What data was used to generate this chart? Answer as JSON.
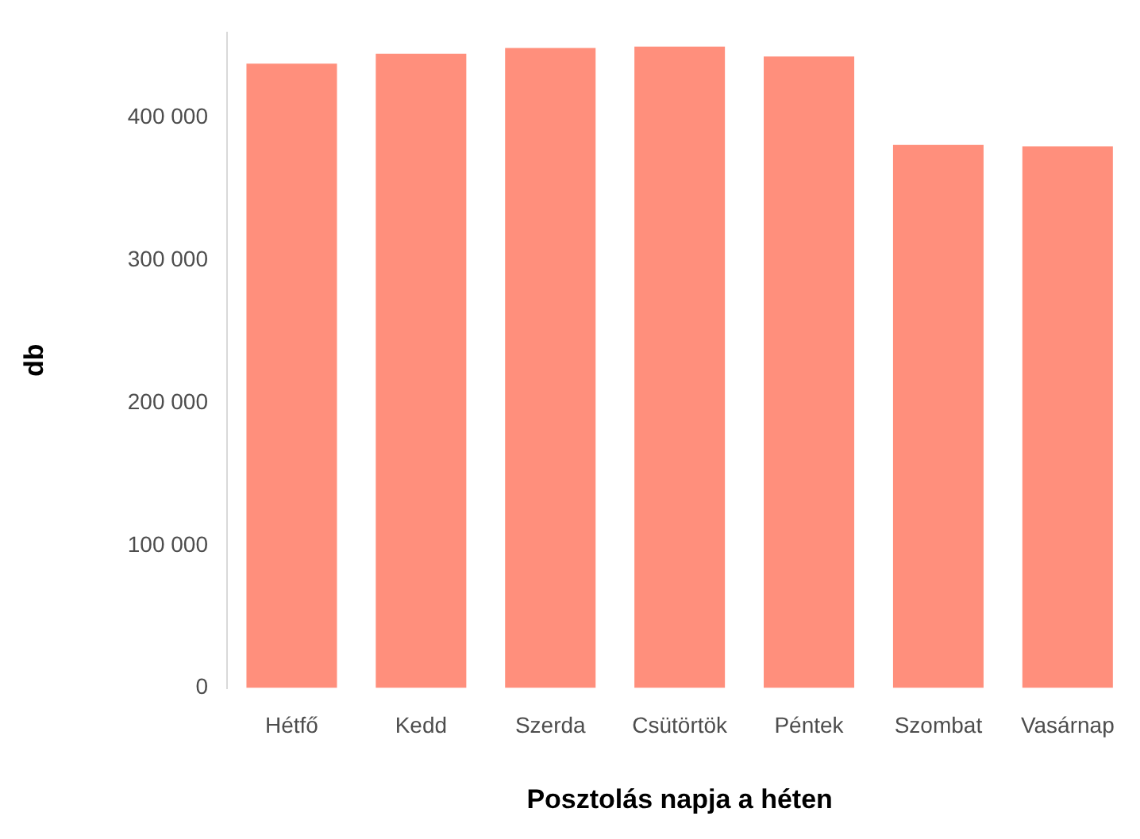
{
  "chart_data": {
    "type": "bar",
    "xlabel": "Posztolás napja a héten",
    "ylabel": "db",
    "categories": [
      "Hétfő",
      "Kedd",
      "Szerda",
      "Csütörtök",
      "Péntek",
      "Szombat",
      "Vasárnap"
    ],
    "values": [
      438000,
      445000,
      449000,
      450000,
      443000,
      381000,
      380000
    ],
    "color": "#ff8f7c",
    "ylim": [
      0,
      460000
    ],
    "yticks": [
      {
        "value": 0,
        "label": "0"
      },
      {
        "value": 100000,
        "label": "100 000"
      },
      {
        "value": 200000,
        "label": "200 000"
      },
      {
        "value": 300000,
        "label": "300 000"
      },
      {
        "value": 400000,
        "label": "400 000"
      }
    ],
    "grid": false
  }
}
